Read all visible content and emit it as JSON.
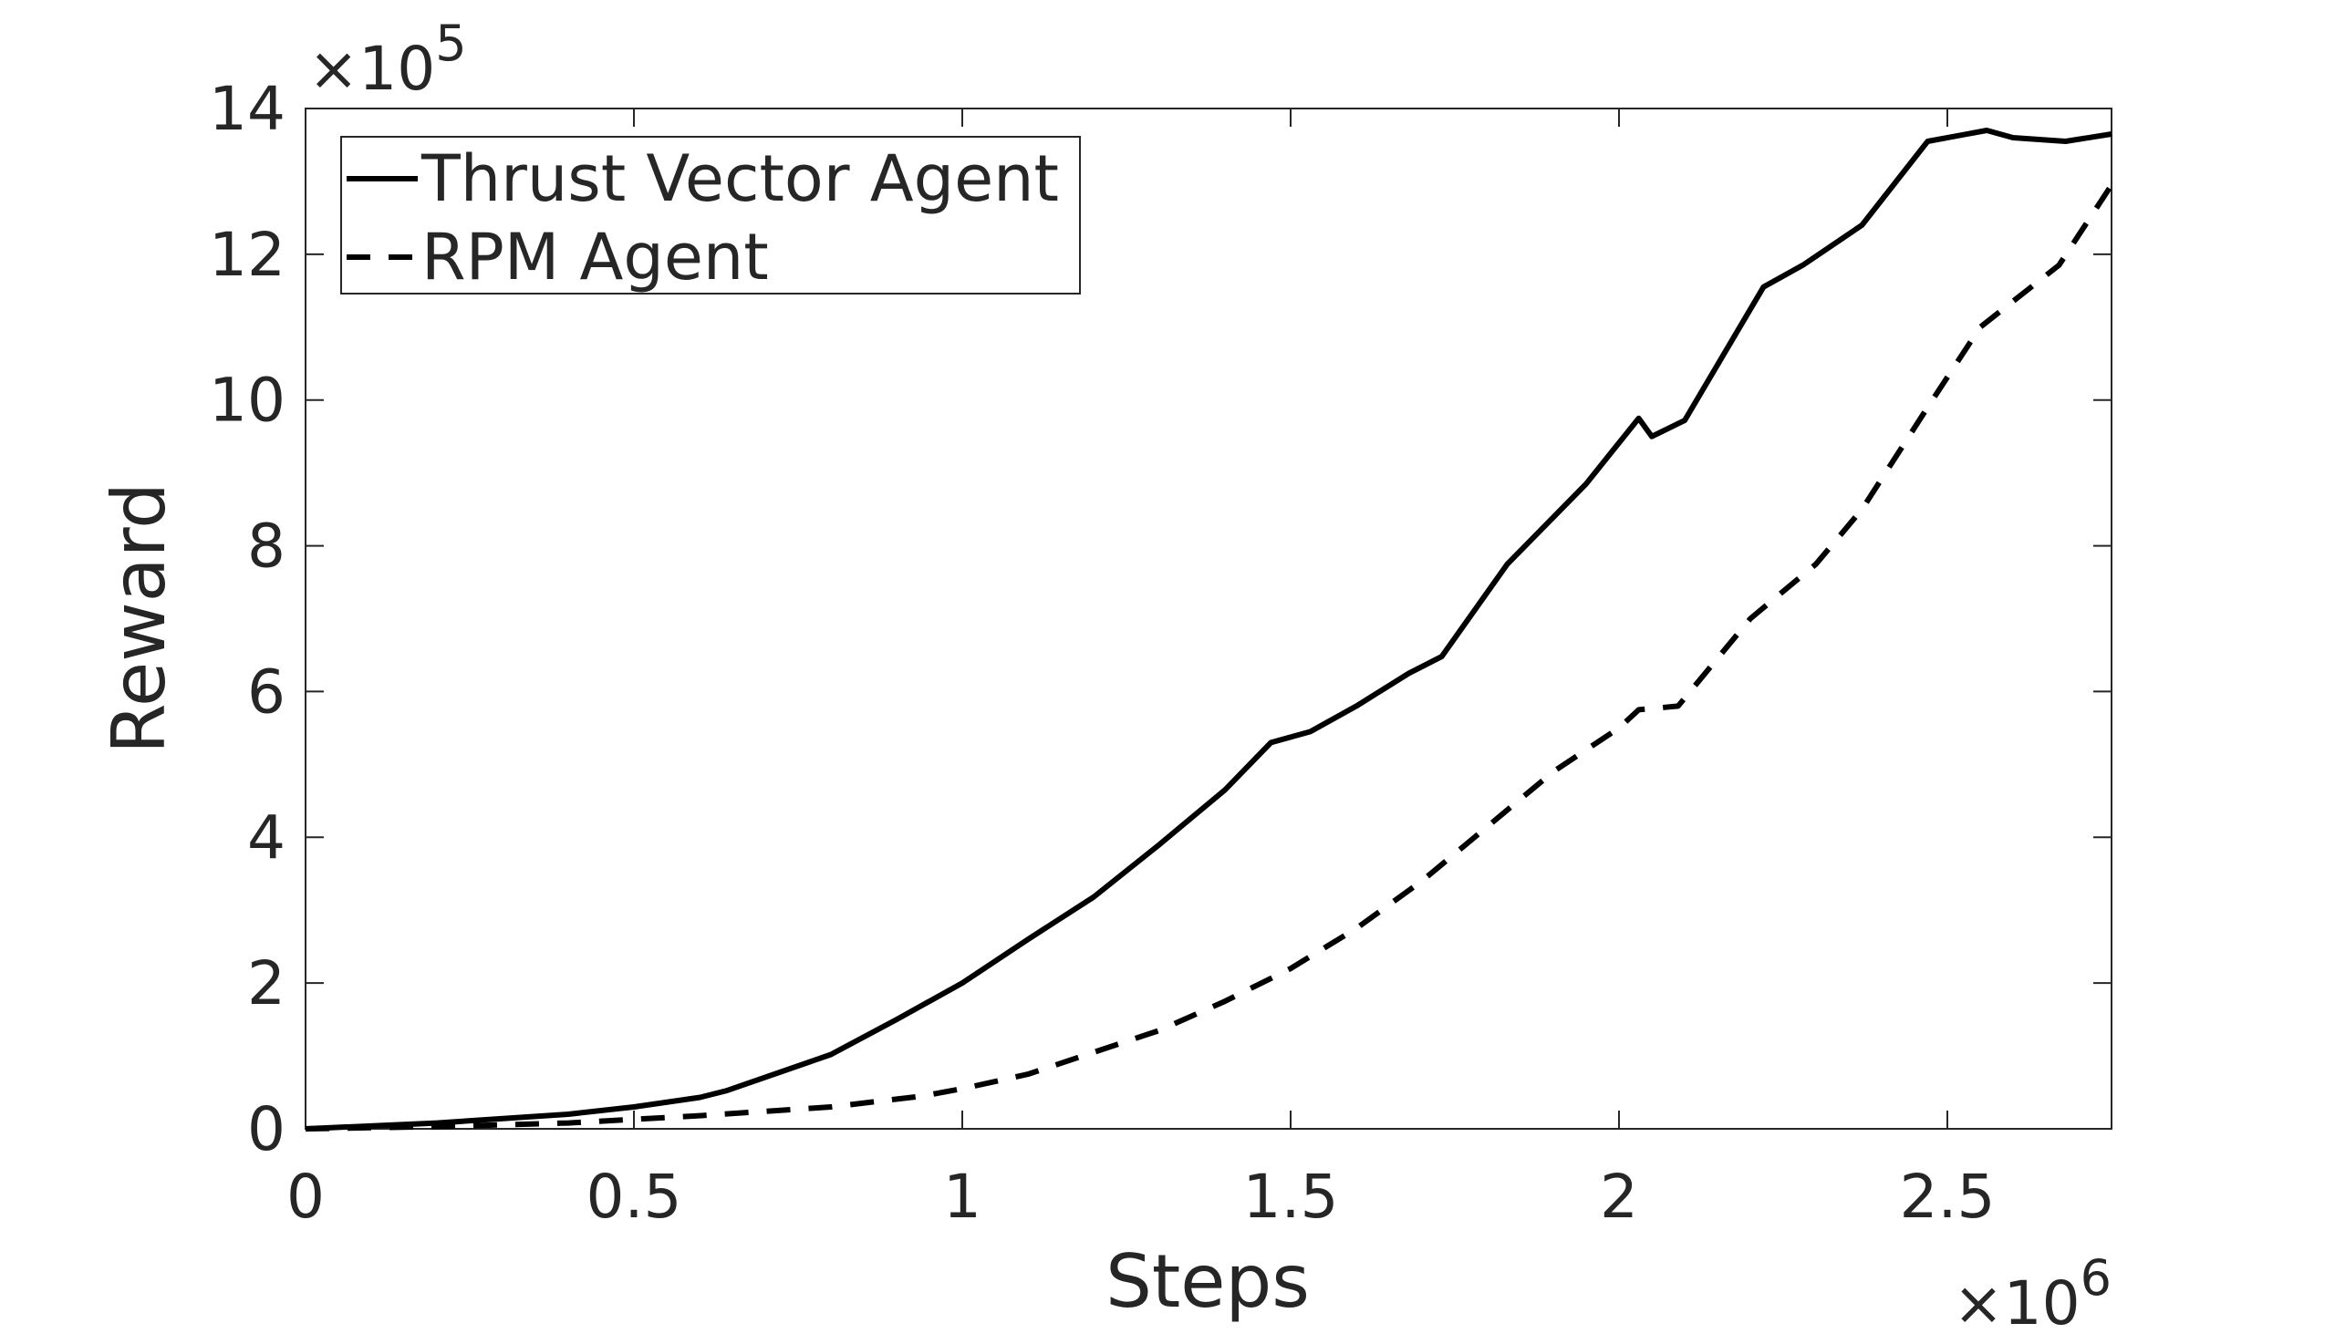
{
  "chart_data": {
    "type": "line",
    "xlabel": "Steps",
    "ylabel": "Reward",
    "x_multiplier": {
      "base": "×10",
      "exponent": "6"
    },
    "y_multiplier": {
      "base": "×10",
      "exponent": "5"
    },
    "xlim": [
      0,
      2.75
    ],
    "xticks": [
      0,
      0.5,
      1,
      1.5,
      2,
      2.5
    ],
    "ylim": [
      0,
      14
    ],
    "yticks": [
      0,
      2,
      4,
      6,
      8,
      10,
      12,
      14
    ],
    "grid": false,
    "legend": "upper left",
    "series": [
      {
        "name": "Thrust Vector Agent",
        "color": "#000000",
        "dash": "solid",
        "x": [
          0,
          0.2,
          0.4,
          0.5,
          0.6,
          0.64,
          0.8,
          0.9,
          1.0,
          1.1,
          1.2,
          1.3,
          1.4,
          1.47,
          1.53,
          1.6,
          1.68,
          1.73,
          1.83,
          1.95,
          2.03,
          2.05,
          2.1,
          2.22,
          2.28,
          2.37,
          2.47,
          2.56,
          2.6,
          2.68,
          2.75
        ],
        "values": [
          0,
          0.08,
          0.2,
          0.3,
          0.43,
          0.52,
          1.02,
          1.5,
          2.0,
          2.6,
          3.18,
          3.9,
          4.65,
          5.3,
          5.45,
          5.8,
          6.25,
          6.48,
          7.75,
          8.85,
          9.75,
          9.5,
          9.72,
          11.55,
          11.85,
          12.4,
          13.55,
          13.7,
          13.6,
          13.55,
          13.65
        ]
      },
      {
        "name": "RPM Agent",
        "color": "#000000",
        "dash": "dashed",
        "x": [
          0,
          0.2,
          0.4,
          0.6,
          0.8,
          0.94,
          1.0,
          1.1,
          1.2,
          1.3,
          1.4,
          1.5,
          1.6,
          1.7,
          1.8,
          1.9,
          2.0,
          2.03,
          2.09,
          2.2,
          2.3,
          2.37,
          2.47,
          2.55,
          2.67,
          2.75
        ],
        "values": [
          0,
          0.03,
          0.08,
          0.18,
          0.3,
          0.45,
          0.55,
          0.75,
          1.05,
          1.35,
          1.75,
          2.2,
          2.75,
          3.4,
          4.15,
          4.9,
          5.5,
          5.75,
          5.8,
          7.0,
          7.75,
          8.5,
          9.9,
          11.0,
          11.85,
          12.95
        ]
      }
    ]
  }
}
